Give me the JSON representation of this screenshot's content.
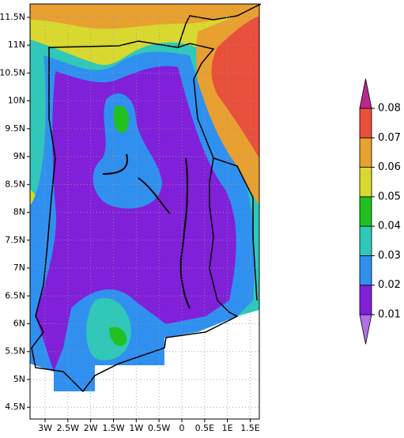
{
  "map": {
    "xlim": [
      -3.33,
      1.7
    ],
    "ylim": [
      4.29,
      11.74
    ],
    "xticks": [
      {
        "value": -3,
        "label": "3W"
      },
      {
        "value": -2.5,
        "label": "2.5W"
      },
      {
        "value": -2,
        "label": "2W"
      },
      {
        "value": -1.5,
        "label": "1.5W"
      },
      {
        "value": -1,
        "label": "1W"
      },
      {
        "value": -0.5,
        "label": "0.5W"
      },
      0,
      {
        "value": 0.5,
        "label": "0.5E"
      },
      {
        "value": 1,
        "label": "1E"
      },
      {
        "value": 1.5,
        "label": "1.5E"
      }
    ],
    "yticks": [
      {
        "value": 4.5,
        "label": "4.5N"
      },
      {
        "value": 5,
        "label": "5N"
      },
      {
        "value": 5.5,
        "label": "5.5N"
      },
      {
        "value": 6,
        "label": "6N"
      },
      {
        "value": 6.5,
        "label": "6.5N"
      },
      {
        "value": 7,
        "label": "7N"
      },
      {
        "value": 7.5,
        "label": "7.5N"
      },
      {
        "value": 8,
        "label": "8N"
      },
      {
        "value": 8.5,
        "label": "8.5N"
      },
      {
        "value": 9,
        "label": "9N"
      },
      {
        "value": 9.5,
        "label": "9.5N"
      },
      {
        "value": 10,
        "label": "10N"
      },
      {
        "value": 10.5,
        "label": "10.5N"
      },
      {
        "value": 11,
        "label": "11N"
      },
      {
        "value": 11.5,
        "label": "11.5N"
      }
    ],
    "grid": true
  },
  "colorbar": {
    "levels": [
      0.01,
      0.02,
      0.03,
      0.04,
      0.05,
      0.06,
      0.07,
      0.08
    ],
    "colors": [
      "#b070e8",
      "#8020d8",
      "#3090f0",
      "#30c8b8",
      "#20c020",
      "#d8d830",
      "#e8a030",
      "#e8503c",
      "#b82890"
    ]
  }
}
